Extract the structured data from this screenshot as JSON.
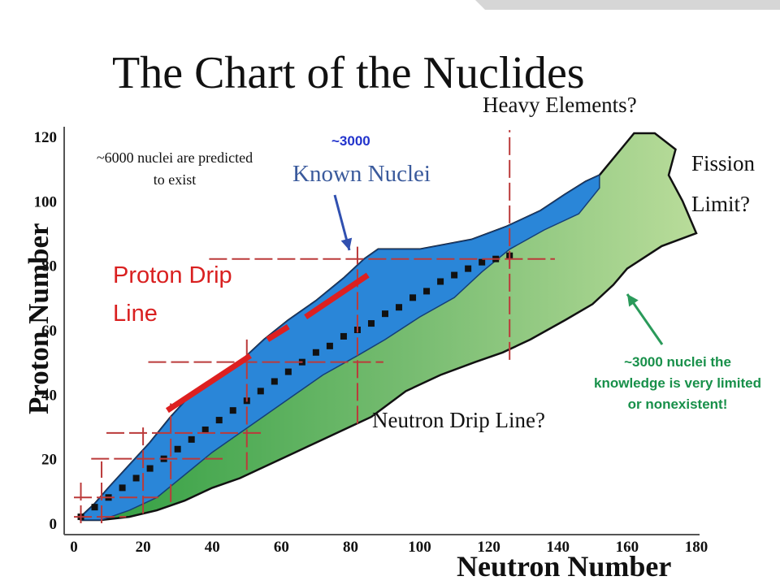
{
  "slide": {
    "title": "The Chart of the Nuclides"
  },
  "annotations": {
    "heavy_elements": "Heavy Elements?",
    "fission_line1": "Fission",
    "fission_line2": "Limit?",
    "predicted": "~6000 nuclei are predicted to exist",
    "known_count": "~3000",
    "known_label": "Known Nuclei",
    "proton_drip": "Proton Drip Line",
    "neutron_drip": "Neutron Drip Line?",
    "unknown_region": "~3000 nuclei the knowledge is very limited or nonexistent!"
  },
  "chart_data": {
    "type": "area",
    "title": "The Chart of the Nuclides",
    "xlabel": "Neutron Number",
    "ylabel": "Proton Number",
    "xlim": [
      0,
      185
    ],
    "ylim": [
      0,
      122
    ],
    "x_ticks": [
      "0",
      "20",
      "40",
      "60",
      "80",
      "100",
      "120",
      "140",
      "160",
      "180"
    ],
    "y_ticks": [
      "0",
      "20",
      "40",
      "60",
      "80",
      "100",
      "120"
    ],
    "magic_numbers": [
      2,
      8,
      20,
      28,
      50,
      82,
      126
    ],
    "colors": {
      "stable": "#111111",
      "known": "#2a86d8",
      "predicted": "#7fc07a",
      "predicted_light": "#b9dc9a",
      "magic_lines": "#bb3a3a",
      "proton_drip_line": "#dd2020",
      "known_arrow": "#3050b0",
      "unknown_arrow": "#2a9a5a"
    },
    "series": [
      {
        "name": "Known Nuclei",
        "polygon": [
          [
            2,
            2
          ],
          [
            6,
            6
          ],
          [
            10,
            11
          ],
          [
            16,
            18
          ],
          [
            22,
            25
          ],
          [
            28,
            33
          ],
          [
            34,
            40
          ],
          [
            42,
            46
          ],
          [
            48,
            50
          ],
          [
            55,
            57
          ],
          [
            62,
            63
          ],
          [
            70,
            69
          ],
          [
            78,
            76
          ],
          [
            84,
            82
          ],
          [
            88,
            85
          ],
          [
            100,
            85
          ],
          [
            115,
            88
          ],
          [
            125,
            92
          ],
          [
            135,
            97
          ],
          [
            142,
            102
          ],
          [
            148,
            106
          ],
          [
            152,
            108
          ],
          [
            152,
            104
          ],
          [
            146,
            96
          ],
          [
            136,
            91
          ],
          [
            126,
            85
          ],
          [
            118,
            78
          ],
          [
            110,
            70
          ],
          [
            100,
            64
          ],
          [
            90,
            57
          ],
          [
            82,
            52
          ],
          [
            72,
            46
          ],
          [
            64,
            40
          ],
          [
            56,
            34
          ],
          [
            48,
            28
          ],
          [
            40,
            22
          ],
          [
            32,
            15
          ],
          [
            24,
            8
          ],
          [
            16,
            4
          ],
          [
            8,
            1
          ],
          [
            2,
            1
          ]
        ]
      },
      {
        "name": "Predicted Nuclei",
        "polygon": [
          [
            2,
            1
          ],
          [
            8,
            1
          ],
          [
            16,
            2
          ],
          [
            24,
            4
          ],
          [
            32,
            7
          ],
          [
            40,
            11
          ],
          [
            48,
            14
          ],
          [
            56,
            18
          ],
          [
            64,
            22
          ],
          [
            72,
            26
          ],
          [
            80,
            30
          ],
          [
            86,
            33
          ],
          [
            96,
            41
          ],
          [
            106,
            46
          ],
          [
            116,
            50
          ],
          [
            124,
            53
          ],
          [
            132,
            57
          ],
          [
            142,
            63
          ],
          [
            150,
            68
          ],
          [
            156,
            74
          ],
          [
            160,
            79
          ],
          [
            170,
            86
          ],
          [
            180,
            90
          ],
          [
            176,
            100
          ],
          [
            172,
            108
          ],
          [
            174,
            116
          ],
          [
            168,
            121
          ],
          [
            162,
            121
          ],
          [
            152,
            108
          ],
          [
            148,
            106
          ],
          [
            142,
            102
          ],
          [
            135,
            97
          ],
          [
            125,
            92
          ],
          [
            115,
            88
          ],
          [
            100,
            85
          ],
          [
            88,
            85
          ],
          [
            84,
            82
          ],
          [
            78,
            76
          ],
          [
            70,
            69
          ],
          [
            62,
            63
          ],
          [
            55,
            57
          ],
          [
            48,
            50
          ],
          [
            42,
            46
          ],
          [
            34,
            40
          ],
          [
            28,
            33
          ],
          [
            22,
            25
          ],
          [
            16,
            18
          ],
          [
            10,
            11
          ],
          [
            6,
            6
          ],
          [
            2,
            2
          ]
        ]
      },
      {
        "name": "Stable Nuclei",
        "x": [
          2,
          6,
          10,
          14,
          18,
          22,
          26,
          30,
          34,
          38,
          42,
          46,
          50,
          54,
          58,
          62,
          66,
          70,
          74,
          78,
          82,
          86,
          90,
          94,
          98,
          102,
          106,
          110,
          114,
          118,
          122,
          126
        ],
        "y": [
          2,
          5,
          8,
          11,
          14,
          17,
          20,
          23,
          26,
          29,
          32,
          35,
          38,
          41,
          44,
          47,
          50,
          53,
          55,
          58,
          60,
          62,
          65,
          67,
          70,
          72,
          75,
          77,
          79,
          81,
          82,
          83
        ]
      }
    ],
    "proton_drip_segments": [
      [
        [
          27,
          35
        ],
        [
          51,
          52
        ]
      ],
      [
        [
          56,
          57
        ],
        [
          62,
          61
        ]
      ],
      [
        [
          67,
          64
        ],
        [
          85,
          77
        ]
      ]
    ]
  }
}
